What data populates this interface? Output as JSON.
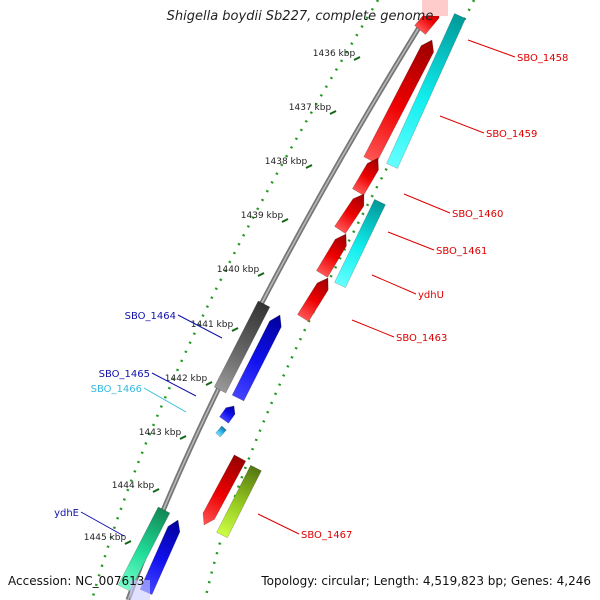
{
  "title": "Shigella boydii Sb227, complete genome",
  "footer": {
    "accession": "Accession: NC_007613",
    "summary": "Topology: circular; Length: 4,519,823 bp; Genes: 4,246"
  },
  "ticks": [
    "1436 kbp",
    "1437 kbp",
    "1438 kbp",
    "1439 kbp",
    "1440 kbp",
    "1441 kbp",
    "1442 kbp",
    "1443 kbp",
    "1444 kbp",
    "1445 kbp"
  ],
  "genes": [
    {
      "name": "SBO_1458",
      "color": "#dd0000"
    },
    {
      "name": "SBO_1459",
      "color": "#dd0000"
    },
    {
      "name": "SBO_1460",
      "color": "#dd0000"
    },
    {
      "name": "SBO_1461",
      "color": "#dd0000"
    },
    {
      "name": "ydhU",
      "color": "#dd0000"
    },
    {
      "name": "SBO_1463",
      "color": "#dd0000"
    },
    {
      "name": "SBO_1464",
      "color": "#1111aa"
    },
    {
      "name": "SBO_1465",
      "color": "#1111aa"
    },
    {
      "name": "SBO_1466",
      "color": "#33bbdd"
    },
    {
      "name": "SBO_1467",
      "color": "#dd0000"
    },
    {
      "name": "ydhE",
      "color": "#1111aa"
    }
  ],
  "colors": {
    "backbone": "#888888",
    "tick_dots": "#228822",
    "forward_cds": "#ee0000",
    "cyan_feature": "#11eeee",
    "blue_feature": "#1111ee",
    "gray_feature": "#666666",
    "green_feature": "#99cc22",
    "teal_feature": "#22dd99"
  }
}
